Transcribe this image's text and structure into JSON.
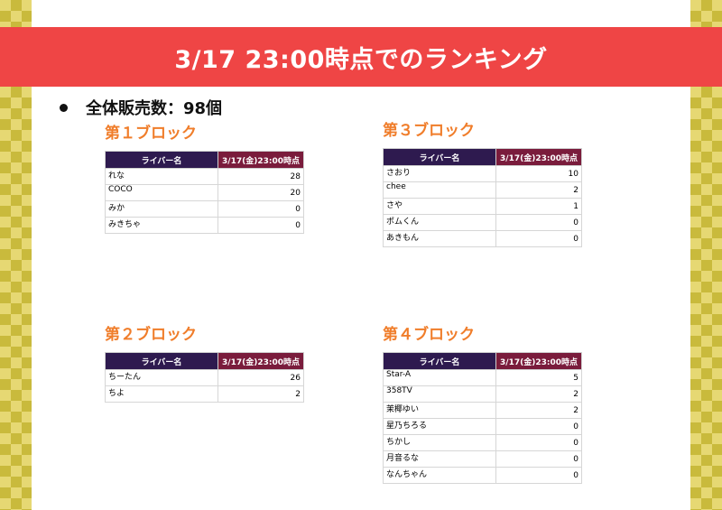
{
  "title": "3/17 23:00時点でのランキング",
  "summary": "全体販売数：98個",
  "blocks": [
    {
      "title": "第１ブロック",
      "header": {
        "name": "ライバー名",
        "time": "3/17(金)23:00時点"
      },
      "rows": [
        {
          "name": "れな",
          "value": "28"
        },
        {
          "name": "COCO",
          "value": "20"
        },
        {
          "name": "みか",
          "value": "0"
        },
        {
          "name": "みきちゃ",
          "value": "0"
        }
      ]
    },
    {
      "title": "第３ブロック",
      "header": {
        "name": "ライバー名",
        "time": "3/17(金)23:00時点"
      },
      "rows": [
        {
          "name": "さおり",
          "value": "10"
        },
        {
          "name": "chee",
          "value": "2"
        },
        {
          "name": "さや",
          "value": "1"
        },
        {
          "name": "ポムくん",
          "value": "0"
        },
        {
          "name": "あきもん",
          "value": "0"
        }
      ]
    },
    {
      "title": "第２ブロック",
      "header": {
        "name": "ライバー名",
        "time": "3/17(金)23:00時点"
      },
      "rows": [
        {
          "name": "ちーたん",
          "value": "26"
        },
        {
          "name": "ちよ",
          "value": "2"
        }
      ]
    },
    {
      "title": "第４ブロック",
      "header": {
        "name": "ライバー名",
        "time": "3/17(金)23:00時点"
      },
      "rows": [
        {
          "name": "Star-A",
          "value": "5"
        },
        {
          "name": "358TV",
          "value": "2"
        },
        {
          "name": "茉椰ゆい",
          "value": "2"
        },
        {
          "name": "星乃ちろる",
          "value": "0"
        },
        {
          "name": "ちかし",
          "value": "0"
        },
        {
          "name": "月音るな",
          "value": "0"
        },
        {
          "name": "なんちゃん",
          "value": "0"
        }
      ]
    }
  ]
}
